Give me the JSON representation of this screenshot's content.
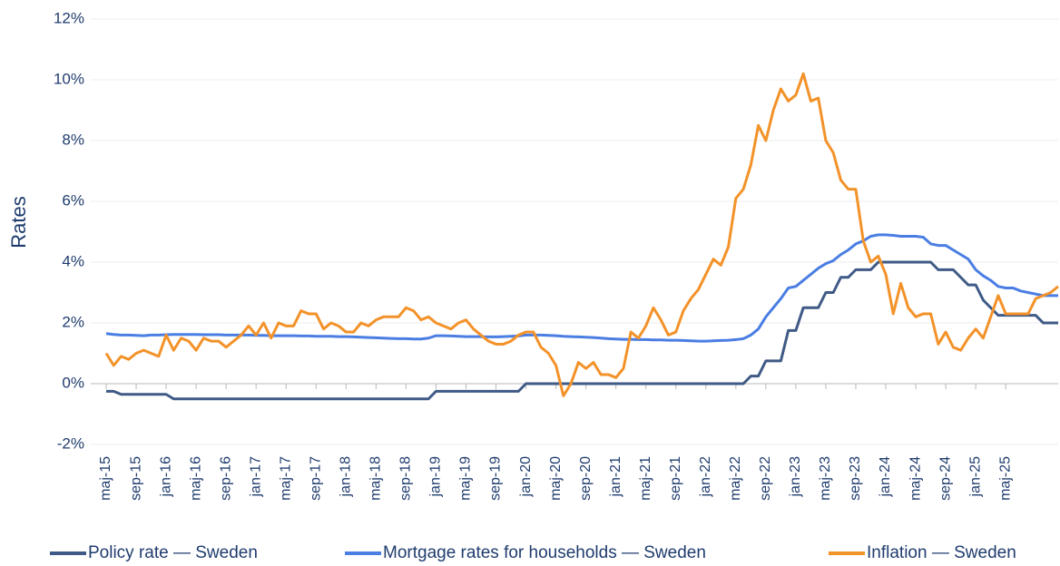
{
  "chart_data": {
    "type": "line",
    "y_label": "Rates",
    "categories": [
      "maj-15",
      null,
      null,
      null,
      "sep-15",
      null,
      null,
      null,
      "jan-16",
      null,
      null,
      null,
      "maj-16",
      null,
      null,
      null,
      "sep-16",
      null,
      null,
      null,
      "jan-17",
      null,
      null,
      null,
      "maj-17",
      null,
      null,
      null,
      "sep-17",
      null,
      null,
      null,
      "jan-18",
      null,
      null,
      null,
      "maj-18",
      null,
      null,
      null,
      "sep-18",
      null,
      null,
      null,
      "jan-19",
      null,
      null,
      null,
      "maj-19",
      null,
      null,
      null,
      "sep-19",
      null,
      null,
      null,
      "jan-20",
      null,
      null,
      null,
      "maj-20",
      null,
      null,
      null,
      "sep-20",
      null,
      null,
      null,
      "jan-21",
      null,
      null,
      null,
      "maj-21",
      null,
      null,
      null,
      "sep-21",
      null,
      null,
      null,
      "jan-22",
      null,
      null,
      null,
      "maj-22",
      null,
      null,
      null,
      "sep-22",
      null,
      null,
      null,
      "jan-23",
      null,
      null,
      null,
      "maj-23",
      null,
      null,
      null,
      "sep-23",
      null,
      null,
      null,
      "jan-24",
      null,
      null,
      null,
      "maj-24",
      null,
      null,
      null,
      "sep-24",
      null,
      null,
      null,
      "jan-25",
      null,
      null,
      null,
      "maj-25",
      null,
      null,
      null,
      null,
      null,
      null,
      null
    ],
    "series": [
      {
        "name": "Policy rate — Sweden",
        "color": "#3f5a86",
        "values": [
          -0.25,
          -0.25,
          -0.35,
          -0.35,
          -0.35,
          -0.35,
          -0.35,
          -0.35,
          -0.35,
          -0.5,
          -0.5,
          -0.5,
          -0.5,
          -0.5,
          -0.5,
          -0.5,
          -0.5,
          -0.5,
          -0.5,
          -0.5,
          -0.5,
          -0.5,
          -0.5,
          -0.5,
          -0.5,
          -0.5,
          -0.5,
          -0.5,
          -0.5,
          -0.5,
          -0.5,
          -0.5,
          -0.5,
          -0.5,
          -0.5,
          -0.5,
          -0.5,
          -0.5,
          -0.5,
          -0.5,
          -0.5,
          -0.5,
          -0.5,
          -0.5,
          -0.25,
          -0.25,
          -0.25,
          -0.25,
          -0.25,
          -0.25,
          -0.25,
          -0.25,
          -0.25,
          -0.25,
          -0.25,
          -0.25,
          0,
          0,
          0,
          0,
          0,
          0,
          0,
          0,
          0,
          0,
          0,
          0,
          0,
          0,
          0,
          0,
          0,
          0,
          0,
          0,
          0,
          0,
          0,
          0,
          0,
          0,
          0,
          0,
          0,
          0,
          0.25,
          0.25,
          0.75,
          0.75,
          0.75,
          1.75,
          1.75,
          2.5,
          2.5,
          2.5,
          3.0,
          3.0,
          3.5,
          3.5,
          3.75,
          3.75,
          3.75,
          4.0,
          4.0,
          4.0,
          4.0,
          4.0,
          4.0,
          4.0,
          4.0,
          3.75,
          3.75,
          3.75,
          3.5,
          3.25,
          3.25,
          2.75,
          2.5,
          2.25,
          2.25,
          2.25,
          2.25,
          2.25,
          2.25,
          2.0,
          2.0,
          2.0
        ]
      },
      {
        "name": "Mortgage rates for households — Sweden",
        "color": "#4a7ee3",
        "values": [
          1.65,
          1.62,
          1.6,
          1.6,
          1.59,
          1.58,
          1.6,
          1.6,
          1.61,
          1.62,
          1.62,
          1.62,
          1.62,
          1.61,
          1.61,
          1.61,
          1.6,
          1.6,
          1.6,
          1.6,
          1.59,
          1.59,
          1.58,
          1.58,
          1.58,
          1.58,
          1.57,
          1.57,
          1.56,
          1.56,
          1.56,
          1.55,
          1.55,
          1.54,
          1.53,
          1.52,
          1.51,
          1.5,
          1.49,
          1.48,
          1.48,
          1.47,
          1.47,
          1.5,
          1.58,
          1.58,
          1.57,
          1.56,
          1.55,
          1.55,
          1.55,
          1.54,
          1.54,
          1.55,
          1.56,
          1.57,
          1.6,
          1.6,
          1.6,
          1.59,
          1.58,
          1.56,
          1.55,
          1.54,
          1.53,
          1.52,
          1.5,
          1.48,
          1.47,
          1.46,
          1.46,
          1.45,
          1.45,
          1.44,
          1.44,
          1.43,
          1.43,
          1.42,
          1.41,
          1.4,
          1.4,
          1.41,
          1.42,
          1.43,
          1.45,
          1.48,
          1.6,
          1.8,
          2.2,
          2.5,
          2.8,
          3.15,
          3.2,
          3.4,
          3.6,
          3.8,
          3.95,
          4.05,
          4.25,
          4.4,
          4.6,
          4.7,
          4.85,
          4.9,
          4.9,
          4.88,
          4.85,
          4.85,
          4.85,
          4.82,
          4.6,
          4.55,
          4.55,
          4.4,
          4.25,
          4.1,
          3.75,
          3.55,
          3.4,
          3.2,
          3.15,
          3.15,
          3.05,
          3.0,
          2.95,
          2.9,
          2.9,
          2.9
        ]
      },
      {
        "name": "Inflation — Sweden",
        "color": "#f39229",
        "values": [
          1.0,
          0.6,
          0.9,
          0.8,
          1.0,
          1.1,
          1.0,
          0.9,
          1.6,
          1.1,
          1.5,
          1.4,
          1.1,
          1.5,
          1.4,
          1.4,
          1.2,
          1.4,
          1.6,
          1.9,
          1.6,
          2.0,
          1.5,
          2.0,
          1.9,
          1.9,
          2.4,
          2.3,
          2.3,
          1.8,
          2.0,
          1.9,
          1.7,
          1.7,
          2.0,
          1.9,
          2.1,
          2.2,
          2.2,
          2.2,
          2.5,
          2.4,
          2.1,
          2.2,
          2.0,
          1.9,
          1.8,
          2.0,
          2.1,
          1.8,
          1.6,
          1.4,
          1.3,
          1.3,
          1.4,
          1.6,
          1.7,
          1.7,
          1.2,
          1.0,
          0.6,
          -0.4,
          0.0,
          0.7,
          0.5,
          0.7,
          0.3,
          0.3,
          0.2,
          0.5,
          1.7,
          1.5,
          1.9,
          2.5,
          2.1,
          1.6,
          1.7,
          2.4,
          2.8,
          3.1,
          3.6,
          4.1,
          3.9,
          4.5,
          6.1,
          6.4,
          7.2,
          8.5,
          8.0,
          9.0,
          9.7,
          9.3,
          9.5,
          10.2,
          9.3,
          9.4,
          8.0,
          7.6,
          6.7,
          6.4,
          6.4,
          4.7,
          4.0,
          4.2,
          3.6,
          2.3,
          3.3,
          2.5,
          2.2,
          2.3,
          2.3,
          1.3,
          1.7,
          1.2,
          1.1,
          1.5,
          1.8,
          1.5,
          2.2,
          2.9,
          2.3,
          2.3,
          2.3,
          2.3,
          2.8,
          2.9,
          3.0,
          3.2
        ]
      }
    ],
    "ylim": [
      -2,
      12
    ],
    "yticks": [
      {
        "value": -2,
        "label": "-2%"
      },
      {
        "value": 0,
        "label": "0%"
      },
      {
        "value": 2,
        "label": "2%"
      },
      {
        "value": 4,
        "label": "4%"
      },
      {
        "value": 6,
        "label": "6%"
      },
      {
        "value": 8,
        "label": "8%"
      },
      {
        "value": 10,
        "label": "10%"
      },
      {
        "value": 12,
        "label": "12%"
      }
    ],
    "grid": true,
    "legend": "bottom"
  }
}
